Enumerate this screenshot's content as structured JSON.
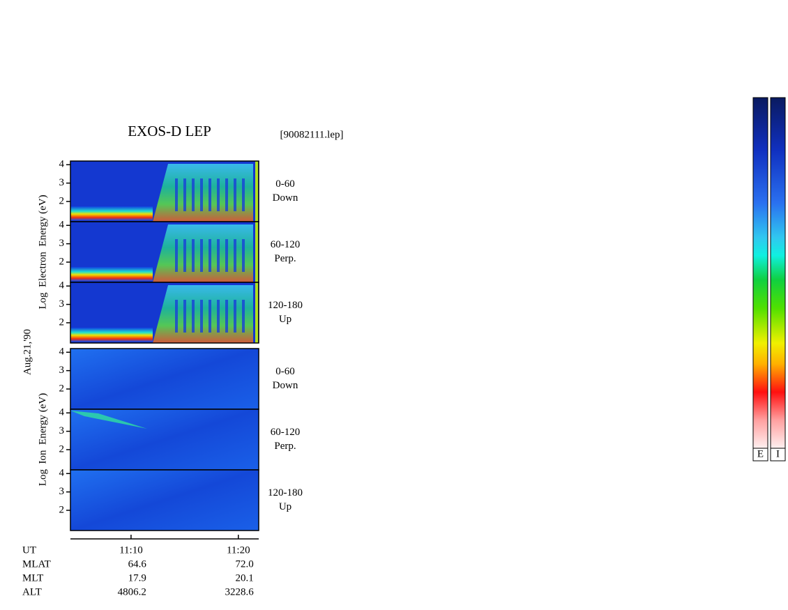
{
  "title": "EXOS-D LEP",
  "file": "[90082111.lep]",
  "date": "Aug.21,'90",
  "chart_data": {
    "type": "spectrogram",
    "xlim": [
      664.35,
      681.9
    ],
    "xticks": [
      {
        "value": 670,
        "label": "11:10"
      },
      {
        "value": 680,
        "label": "11:20"
      }
    ],
    "groups": [
      {
        "ylabel": "Log  Electron  Energy (eV)",
        "panels": [
          {
            "ylim": [
              0.9,
              4.2
            ],
            "yticks": [
              2,
              3,
              4
            ],
            "pitch": "0-60",
            "direction": "Down"
          },
          {
            "ylim": [
              0.9,
              4.2
            ],
            "yticks": [
              2,
              3,
              4
            ],
            "pitch": "60-120",
            "direction": "Perp."
          },
          {
            "ylim": [
              0.9,
              4.2
            ],
            "yticks": [
              2,
              3,
              4
            ],
            "pitch": "120-180",
            "direction": "Up"
          }
        ]
      },
      {
        "ylabel": "Log  Ion  Energy (eV)",
        "panels": [
          {
            "ylim": [
              0.9,
              4.2
            ],
            "yticks": [
              2,
              3,
              4
            ],
            "pitch": "0-60",
            "direction": "Down"
          },
          {
            "ylim": [
              0.9,
              4.2
            ],
            "yticks": [
              2,
              3,
              4
            ],
            "pitch": "60-120",
            "direction": "Perp."
          },
          {
            "ylim": [
              0.9,
              4.2
            ],
            "yticks": [
              2,
              3,
              4
            ],
            "pitch": "120-180",
            "direction": "Up"
          }
        ]
      }
    ]
  },
  "ephemeris": {
    "rows": [
      {
        "label": "UT"
      },
      {
        "label": "MLAT",
        "values": [
          "64.6",
          "72.0"
        ]
      },
      {
        "label": "MLT",
        "values": [
          "17.9",
          "20.1"
        ]
      },
      {
        "label": "ALT",
        "values": [
          "4806.2",
          "3228.6"
        ]
      }
    ]
  },
  "colorbars": [
    "E",
    "I"
  ]
}
